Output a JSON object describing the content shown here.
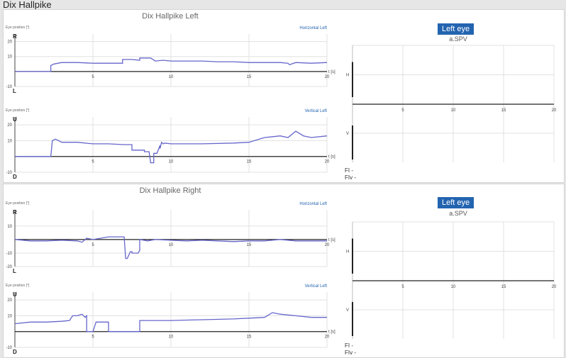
{
  "page_title": "Dix Hallpike",
  "colors": {
    "trace": "#6666cc",
    "accent": "#2364b0",
    "grid": "#e0e0e0",
    "axis": "#444444"
  },
  "panels": [
    {
      "title": "Dix Hallpike Left",
      "eye_label": "Left eye",
      "spv_label": "a.SPV",
      "h_label": "H",
      "v_label": "V",
      "fi_label": "FI -",
      "fiv_label": "FIv -"
    },
    {
      "title": "Dix Hallpike Right",
      "eye_label": "Left eye",
      "spv_label": "a.SPV",
      "h_label": "H",
      "v_label": "V",
      "fi_label": "FI -",
      "fiv_label": "FIv -"
    }
  ],
  "chart_data": [
    {
      "type": "line",
      "panel": 0,
      "series_label": "Horizontal Left",
      "ylabel": "Eye position [°]",
      "top_label": "R",
      "bottom_label": "L",
      "end_label": "t [s]",
      "xlim": [
        0,
        20
      ],
      "ylim": [
        -10,
        25
      ],
      "x_ticks": [
        5,
        10,
        15,
        20
      ],
      "y_ticks": [
        -10,
        10,
        20
      ],
      "x": [
        0,
        2.3,
        2.3,
        2.5,
        3,
        4,
        5,
        6,
        6.9,
        6.9,
        7.5,
        8,
        8,
        8.5,
        8.7,
        9,
        9.5,
        10,
        11,
        12,
        13,
        14,
        15,
        16,
        17,
        17.5,
        17.6,
        18,
        19,
        20
      ],
      "y": [
        0,
        0,
        4,
        5,
        6,
        6,
        5.5,
        5.5,
        5.5,
        8,
        8,
        7.5,
        9,
        9,
        9,
        7,
        7.5,
        7,
        7,
        7,
        6.5,
        6.5,
        6,
        6,
        6,
        5.5,
        4.5,
        6,
        5.5,
        6
      ]
    },
    {
      "type": "line",
      "panel": 0,
      "series_label": "Vertical Left",
      "ylabel": "Eye position [°]",
      "top_label": "U",
      "bottom_label": "D",
      "end_label": "t [s]",
      "xlim": [
        0,
        20
      ],
      "ylim": [
        -10,
        25
      ],
      "x_ticks": [
        5,
        10,
        15,
        20
      ],
      "y_ticks": [
        -10,
        10,
        20
      ],
      "x": [
        0,
        2.3,
        2.4,
        2.6,
        3,
        4,
        5,
        6,
        7,
        7.5,
        7.5,
        8.3,
        8.3,
        8.6,
        8.7,
        8.9,
        8.9,
        9.1,
        9.3,
        9.3,
        9.4,
        9.5,
        9.6,
        10,
        12,
        14,
        15,
        16,
        17,
        17.5,
        18,
        18.5,
        19,
        20
      ],
      "y": [
        0,
        0,
        10,
        11,
        9,
        9,
        8,
        8,
        7.5,
        7.5,
        4,
        4,
        3,
        3,
        -4,
        -4,
        2,
        2,
        7,
        5,
        9,
        8,
        8.5,
        8,
        8,
        8.5,
        9,
        12,
        13,
        12,
        16,
        13,
        12,
        13
      ]
    },
    {
      "type": "line",
      "panel": 1,
      "series_label": "Horizontal Left",
      "ylabel": "Eye position [°]",
      "top_label": "R",
      "bottom_label": "L",
      "end_label": "t [s]",
      "xlim": [
        0,
        20
      ],
      "ylim": [
        -20,
        22
      ],
      "x_ticks": [
        5,
        10,
        15,
        20
      ],
      "y_ticks": [
        -20,
        -10,
        10
      ],
      "x": [
        0,
        1,
        2,
        3,
        4,
        4.3,
        4.6,
        5,
        6,
        7,
        7.1,
        7.2,
        7.4,
        7.5,
        7.5,
        7.9,
        8,
        8,
        8.5,
        9,
        10,
        11,
        12,
        13,
        14,
        15,
        16,
        17,
        18,
        19,
        20
      ],
      "y": [
        0,
        -1,
        -1,
        -0.5,
        -1,
        -2,
        1,
        0,
        2,
        2,
        -14,
        -14,
        -9,
        -9,
        -10,
        -10,
        -8,
        0,
        -1,
        0,
        -0.5,
        -1,
        -0.5,
        -1,
        -1.5,
        -1,
        -1,
        0,
        -1,
        -1,
        -1
      ]
    },
    {
      "type": "line",
      "panel": 1,
      "series_label": "Vertical Left",
      "ylabel": "Eye position [°]",
      "top_label": "U",
      "bottom_label": "D",
      "end_label": "t [s]",
      "xlim": [
        0,
        20
      ],
      "ylim": [
        -10,
        25
      ],
      "x": [
        0,
        1,
        2,
        3,
        3.5,
        3.7,
        4,
        4.3,
        4.5,
        4.6,
        4.6,
        5,
        5.2,
        5.2,
        6,
        6,
        6.8,
        7,
        7,
        7.9,
        8,
        8,
        9,
        10,
        12,
        14,
        15,
        16,
        16.5,
        17,
        18,
        19,
        20
      ],
      "x_ticks": [
        5,
        10,
        15,
        20
      ],
      "y_ticks": [
        -10,
        10,
        20
      ],
      "y": [
        5,
        6,
        6,
        6.5,
        7,
        10,
        10,
        11,
        9,
        10,
        0,
        0,
        6,
        6,
        6,
        0,
        0,
        0,
        0,
        0,
        0,
        7,
        7,
        7,
        7.5,
        8,
        8.5,
        9,
        12,
        11,
        10,
        9,
        9
      ]
    },
    {
      "type": "line",
      "panel": 0,
      "title": "a.SPV",
      "xlim": [
        0,
        20
      ],
      "x_ticks": [
        5,
        10,
        15,
        20
      ],
      "series": []
    },
    {
      "type": "line",
      "panel": 1,
      "title": "a.SPV",
      "xlim": [
        0,
        20
      ],
      "x_ticks": [
        5,
        10,
        15,
        20
      ],
      "series": []
    }
  ]
}
